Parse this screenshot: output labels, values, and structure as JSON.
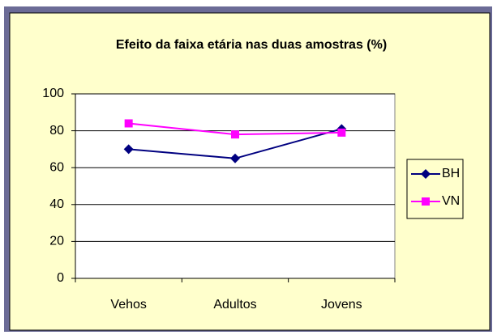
{
  "chart_data": {
    "type": "line",
    "title": "Efeito da faixa etária nas duas amostras (%)",
    "categories": [
      "Vehos",
      "Adultos",
      "Jovens"
    ],
    "series": [
      {
        "name": "BH",
        "color": "#000080",
        "marker": "diamond",
        "values": [
          70,
          65,
          81
        ]
      },
      {
        "name": "VN",
        "color": "#ff00ff",
        "marker": "square",
        "values": [
          84,
          78,
          79
        ]
      }
    ],
    "ylim": [
      0,
      100
    ],
    "yticks": [
      0,
      20,
      40,
      60,
      80,
      100
    ],
    "grid": true,
    "legend": "right"
  }
}
